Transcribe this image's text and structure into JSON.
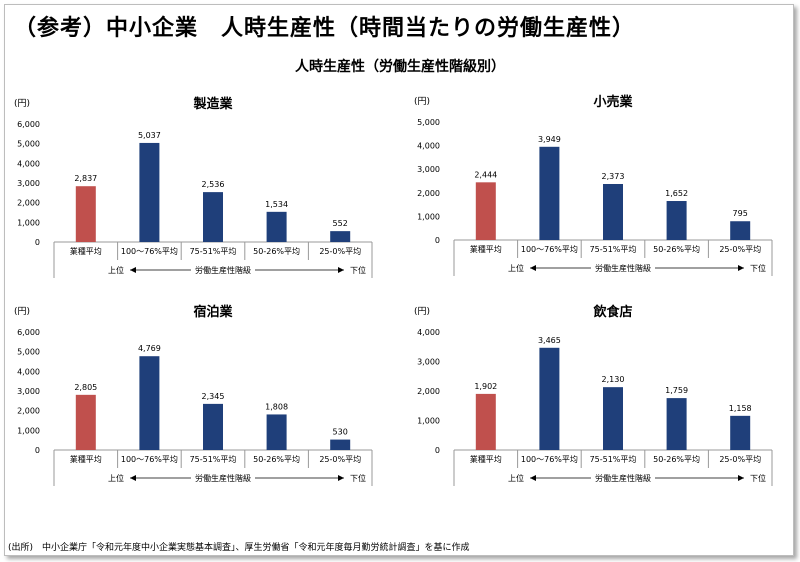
{
  "page": {
    "main_title": "（参考）中小企業　人時生産性（時間当たりの労働生産性）",
    "sub_title": "人時生産性（労働生産性階級別）",
    "source": "(出所)　中小企業庁「令和元年度中小企業実態基本調査」、厚生労働省「令和元年度毎月勤労統計調査」を基に作成"
  },
  "colors": {
    "highlight": "#C0504D",
    "bar": "#1F3F7A"
  },
  "chart_data": [
    {
      "type": "bar",
      "title": "製造業",
      "ylabel": "(円)",
      "ylim": [
        0,
        6000
      ],
      "yticks": [
        0,
        1000,
        2000,
        3000,
        4000,
        5000,
        6000
      ],
      "categories": [
        "業種平均",
        "100～76%平均",
        "75-51%平均",
        "50-26%平均",
        "25-0%平均"
      ],
      "values": [
        2837,
        5037,
        2536,
        1534,
        552
      ],
      "value_labels": [
        "2,837",
        "5,037",
        "2,536",
        "1,534",
        "552"
      ],
      "tick_labels": [
        "0",
        "1,000",
        "2,000",
        "3,000",
        "4,000",
        "5,000",
        "6,000"
      ],
      "axis_note": {
        "left": "上位",
        "center": "労働生産性階級",
        "right": "下位"
      }
    },
    {
      "type": "bar",
      "title": "小売業",
      "ylabel": "(円)",
      "ylim": [
        0,
        5000
      ],
      "yticks": [
        0,
        1000,
        2000,
        3000,
        4000,
        5000
      ],
      "categories": [
        "業種平均",
        "100～76%平均",
        "75-51%平均",
        "50-26%平均",
        "25-0%平均"
      ],
      "values": [
        2444,
        3949,
        2373,
        1652,
        795
      ],
      "value_labels": [
        "2,444",
        "3,949",
        "2,373",
        "1,652",
        "795"
      ],
      "tick_labels": [
        "0",
        "1,000",
        "2,000",
        "3,000",
        "4,000",
        "5,000"
      ],
      "axis_note": {
        "left": "上位",
        "center": "労働生産性階級",
        "right": "下位"
      }
    },
    {
      "type": "bar",
      "title": "宿泊業",
      "ylabel": "(円)",
      "ylim": [
        0,
        6000
      ],
      "yticks": [
        0,
        1000,
        2000,
        3000,
        4000,
        5000,
        6000
      ],
      "categories": [
        "業種平均",
        "100～76%平均",
        "75-51%平均",
        "50-26%平均",
        "25-0%平均"
      ],
      "values": [
        2805,
        4769,
        2345,
        1808,
        530
      ],
      "value_labels": [
        "2,805",
        "4,769",
        "2,345",
        "1,808",
        "530"
      ],
      "tick_labels": [
        "0",
        "1,000",
        "2,000",
        "3,000",
        "4,000",
        "5,000",
        "6,000"
      ],
      "axis_note": {
        "left": "上位",
        "center": "労働生産性階級",
        "right": "下位"
      }
    },
    {
      "type": "bar",
      "title": "飲食店",
      "ylabel": "(円)",
      "ylim": [
        0,
        4000
      ],
      "yticks": [
        0,
        1000,
        2000,
        3000,
        4000
      ],
      "categories": [
        "業種平均",
        "100～76%平均",
        "75-51%平均",
        "50-26%平均",
        "25-0%平均"
      ],
      "values": [
        1902,
        3465,
        2130,
        1759,
        1158
      ],
      "value_labels": [
        "1,902",
        "3,465",
        "2,130",
        "1,759",
        "1,158"
      ],
      "tick_labels": [
        "0",
        "1,000",
        "2,000",
        "3,000",
        "4,000"
      ],
      "axis_note": {
        "left": "上位",
        "center": "労働生産性階級",
        "right": "下位"
      }
    }
  ]
}
